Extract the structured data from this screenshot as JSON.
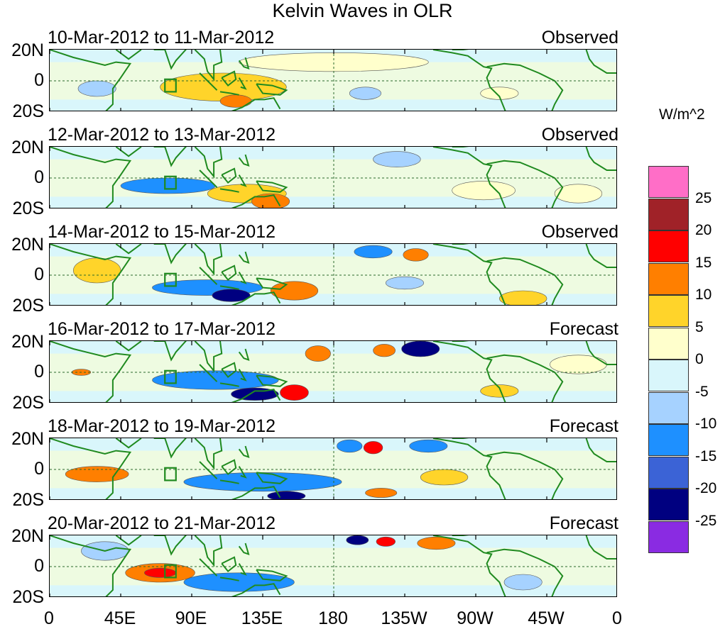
{
  "title": "Kelvin Waves in OLR",
  "units": "W/m^2",
  "lat_labels": [
    "20N",
    "0",
    "20S"
  ],
  "lon_labels": [
    "0",
    "45E",
    "90E",
    "135E",
    "180",
    "135W",
    "90W",
    "45W",
    "0"
  ],
  "panels": [
    {
      "date": "10-Mar-2012 to 11-Mar-2012",
      "kind": "Observed",
      "anomalies": [
        {
          "lon": 110,
          "lat": -4,
          "rx": 40,
          "ry": 9,
          "value": 7
        },
        {
          "lon": 118,
          "lat": -13,
          "rx": 10,
          "ry": 4,
          "value": 12
        },
        {
          "lon": 30,
          "lat": -5,
          "rx": 12,
          "ry": 5,
          "value": -6
        },
        {
          "lon": 200,
          "lat": -8,
          "rx": 10,
          "ry": 4,
          "value": -6
        },
        {
          "lon": 285,
          "lat": -8,
          "rx": 12,
          "ry": 4,
          "value": 3
        },
        {
          "lon": 180,
          "lat": 12,
          "rx": 60,
          "ry": 6,
          "value": 1
        }
      ]
    },
    {
      "date": "12-Mar-2012 to 13-Mar-2012",
      "kind": "Observed",
      "anomalies": [
        {
          "lon": 75,
          "lat": -5,
          "rx": 30,
          "ry": 5,
          "value": -12
        },
        {
          "lon": 125,
          "lat": -10,
          "rx": 25,
          "ry": 6,
          "value": 8
        },
        {
          "lon": 140,
          "lat": -15,
          "rx": 12,
          "ry": 5,
          "value": 13
        },
        {
          "lon": 220,
          "lat": 12,
          "rx": 15,
          "ry": 5,
          "value": -6
        },
        {
          "lon": 335,
          "lat": -10,
          "rx": 15,
          "ry": 6,
          "value": 4
        },
        {
          "lon": 275,
          "lat": -8,
          "rx": 20,
          "ry": 6,
          "value": 2
        }
      ]
    },
    {
      "date": "14-Mar-2012 to 15-Mar-2012",
      "kind": "Observed",
      "anomalies": [
        {
          "lon": 100,
          "lat": -8,
          "rx": 35,
          "ry": 5,
          "value": -12
        },
        {
          "lon": 115,
          "lat": -13,
          "rx": 12,
          "ry": 4,
          "value": -22
        },
        {
          "lon": 155,
          "lat": -10,
          "rx": 15,
          "ry": 6,
          "value": 12
        },
        {
          "lon": 205,
          "lat": 15,
          "rx": 12,
          "ry": 4,
          "value": -14
        },
        {
          "lon": 232,
          "lat": 13,
          "rx": 8,
          "ry": 4,
          "value": 10
        },
        {
          "lon": 30,
          "lat": 3,
          "rx": 15,
          "ry": 8,
          "value": 6
        },
        {
          "lon": 300,
          "lat": -15,
          "rx": 15,
          "ry": 5,
          "value": 7
        },
        {
          "lon": 225,
          "lat": -5,
          "rx": 12,
          "ry": 4,
          "value": -7
        }
      ]
    },
    {
      "date": "16-Mar-2012 to 17-Mar-2012",
      "kind": "Forecast",
      "anomalies": [
        {
          "lon": 105,
          "lat": -5,
          "rx": 40,
          "ry": 6,
          "value": -14
        },
        {
          "lon": 130,
          "lat": -14,
          "rx": 15,
          "ry": 4,
          "value": -22
        },
        {
          "lon": 155,
          "lat": -13,
          "rx": 9,
          "ry": 5,
          "value": 17
        },
        {
          "lon": 170,
          "lat": 12,
          "rx": 8,
          "ry": 5,
          "value": 12
        },
        {
          "lon": 235,
          "lat": 15,
          "rx": 12,
          "ry": 5,
          "value": -22
        },
        {
          "lon": 212,
          "lat": 14,
          "rx": 7,
          "ry": 4,
          "value": 13
        },
        {
          "lon": 20,
          "lat": 0,
          "rx": 6,
          "ry": 2,
          "value": 12
        },
        {
          "lon": 285,
          "lat": -12,
          "rx": 12,
          "ry": 4,
          "value": 6
        },
        {
          "lon": 335,
          "lat": 5,
          "rx": 18,
          "ry": 6,
          "value": 2
        }
      ]
    },
    {
      "date": "18-Mar-2012 to 19-Mar-2012",
      "kind": "Forecast",
      "anomalies": [
        {
          "lon": 135,
          "lat": -8,
          "rx": 50,
          "ry": 6,
          "value": -12
        },
        {
          "lon": 150,
          "lat": -17,
          "rx": 12,
          "ry": 3,
          "value": -20
        },
        {
          "lon": 190,
          "lat": 15,
          "rx": 8,
          "ry": 4,
          "value": -14
        },
        {
          "lon": 205,
          "lat": 14,
          "rx": 6,
          "ry": 4,
          "value": 17
        },
        {
          "lon": 240,
          "lat": 15,
          "rx": 12,
          "ry": 4,
          "value": -12
        },
        {
          "lon": 30,
          "lat": -3,
          "rx": 20,
          "ry": 5,
          "value": 12
        },
        {
          "lon": 250,
          "lat": -5,
          "rx": 15,
          "ry": 5,
          "value": 5
        },
        {
          "lon": 210,
          "lat": -15,
          "rx": 10,
          "ry": 3,
          "value": 10
        }
      ]
    },
    {
      "date": "20-Mar-2012 to 21-Mar-2012",
      "kind": "Forecast",
      "anomalies": [
        {
          "lon": 70,
          "lat": -4,
          "rx": 22,
          "ry": 6,
          "value": 12
        },
        {
          "lon": 70,
          "lat": -4,
          "rx": 10,
          "ry": 3,
          "value": 17
        },
        {
          "lon": 120,
          "lat": -10,
          "rx": 35,
          "ry": 6,
          "value": -12
        },
        {
          "lon": 195,
          "lat": 17,
          "rx": 7,
          "ry": 3,
          "value": -22
        },
        {
          "lon": 213,
          "lat": 16,
          "rx": 6,
          "ry": 3,
          "value": 16
        },
        {
          "lon": 245,
          "lat": 15,
          "rx": 12,
          "ry": 4,
          "value": 10
        },
        {
          "lon": 35,
          "lat": 10,
          "rx": 15,
          "ry": 6,
          "value": -6
        },
        {
          "lon": 300,
          "lat": -10,
          "rx": 12,
          "ry": 5,
          "value": -5
        }
      ]
    }
  ],
  "legend": {
    "labels": [
      "25",
      "20",
      "15",
      "10",
      "5",
      "0",
      "-5",
      "-10",
      "-15",
      "-20",
      "-25"
    ],
    "colors": [
      "#ff6ec7",
      "#a02228",
      "#ff0000",
      "#ff7f00",
      "#ffd42a",
      "#ffffcc",
      "#d9f6fb",
      "#a6d2ff",
      "#1e90ff",
      "#3b63d6",
      "#000080",
      "#8a2be2"
    ]
  }
}
